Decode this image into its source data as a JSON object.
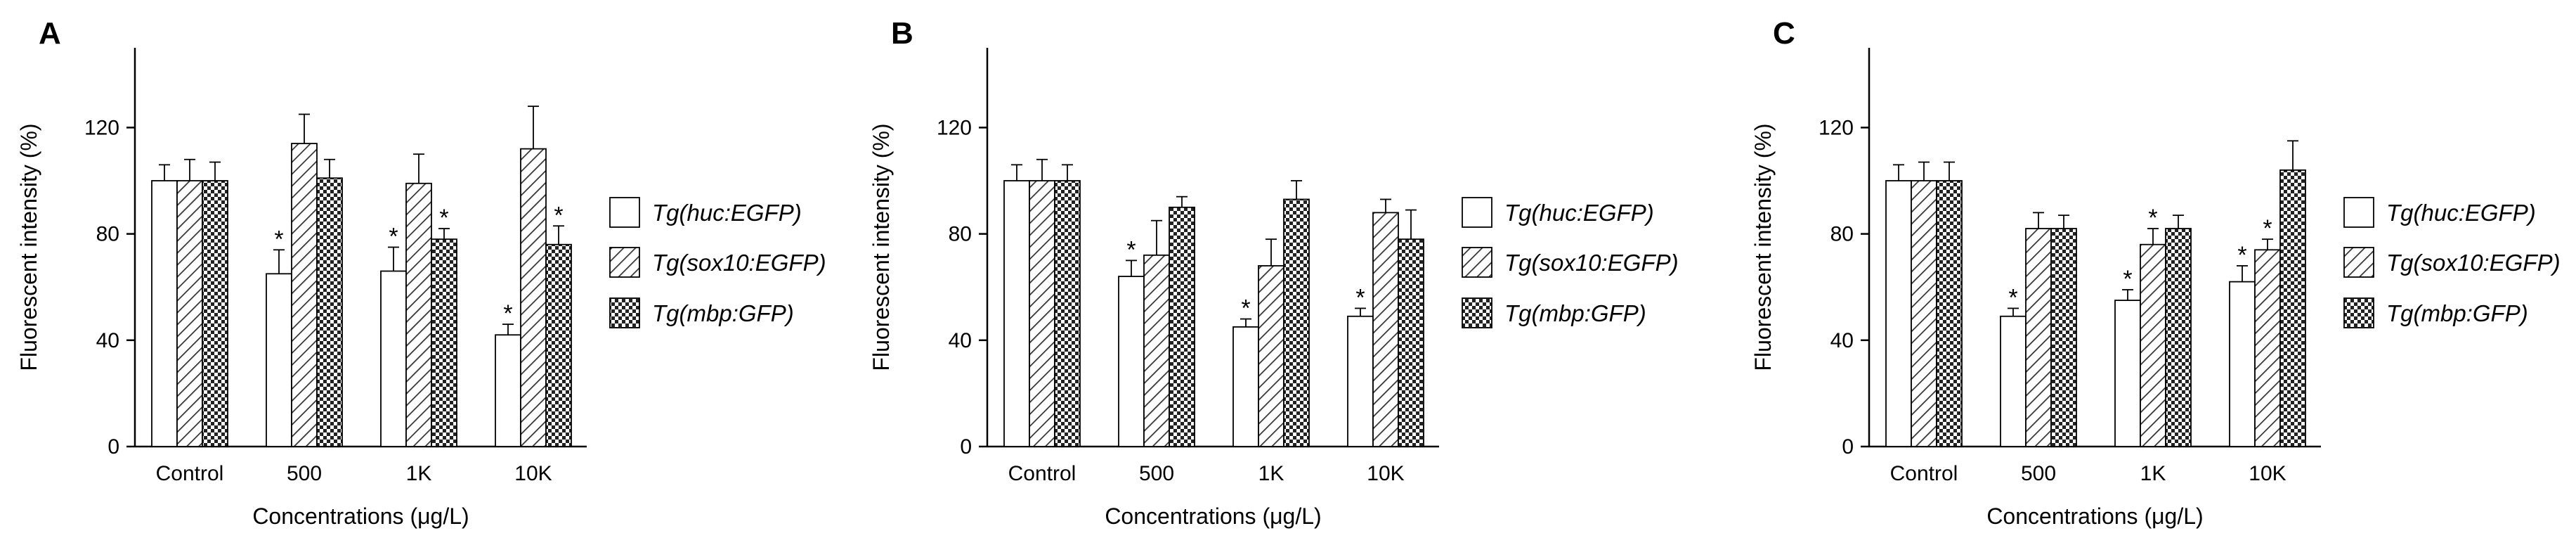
{
  "legend_labels": [
    "Tg(huc:EGFP)",
    "Tg(sox10:EGFP)",
    "Tg(mbp:GFP)"
  ],
  "chart_data": [
    {
      "type": "bar",
      "panel": "A",
      "xlabel": "Concentrations (μg/L)",
      "ylabel": "Fluorescent intensity (%)",
      "ylim": [
        0,
        150
      ],
      "yticks": [
        0,
        40,
        80,
        120
      ],
      "categories": [
        "Control",
        "500",
        "1K",
        "10K"
      ],
      "series": [
        {
          "name": "Tg(huc:EGFP)",
          "values": [
            100,
            65,
            66,
            42
          ],
          "errors": [
            6,
            9,
            9,
            4
          ],
          "significant": [
            false,
            true,
            true,
            true
          ]
        },
        {
          "name": "Tg(sox10:EGFP)",
          "values": [
            100,
            114,
            99,
            112
          ],
          "errors": [
            8,
            11,
            11,
            16
          ],
          "significant": [
            false,
            false,
            false,
            false
          ]
        },
        {
          "name": "Tg(mbp:GFP)",
          "values": [
            100,
            101,
            78,
            76
          ],
          "errors": [
            7,
            7,
            4,
            7
          ],
          "significant": [
            false,
            false,
            true,
            true
          ]
        }
      ],
      "legend_position": "right"
    },
    {
      "type": "bar",
      "panel": "B",
      "xlabel": "Concentrations (μg/L)",
      "ylabel": "Fluorescent intensity (%)",
      "ylim": [
        0,
        150
      ],
      "yticks": [
        0,
        40,
        80,
        120
      ],
      "categories": [
        "Control",
        "500",
        "1K",
        "10K"
      ],
      "series": [
        {
          "name": "Tg(huc:EGFP)",
          "values": [
            100,
            64,
            45,
            49
          ],
          "errors": [
            6,
            6,
            3,
            3
          ],
          "significant": [
            false,
            true,
            true,
            true
          ]
        },
        {
          "name": "Tg(sox10:EGFP)",
          "values": [
            100,
            72,
            68,
            88
          ],
          "errors": [
            8,
            13,
            10,
            5
          ],
          "significant": [
            false,
            false,
            false,
            false
          ]
        },
        {
          "name": "Tg(mbp:GFP)",
          "values": [
            100,
            90,
            93,
            78
          ],
          "errors": [
            6,
            4,
            7,
            11
          ],
          "significant": [
            false,
            false,
            false,
            false
          ]
        }
      ],
      "legend_position": "right"
    },
    {
      "type": "bar",
      "panel": "C",
      "xlabel": "Concentrations (μg/L)",
      "ylabel": "Fluorescent intensity (%)",
      "ylim": [
        0,
        150
      ],
      "yticks": [
        0,
        40,
        80,
        120
      ],
      "categories": [
        "Control",
        "500",
        "1K",
        "10K"
      ],
      "series": [
        {
          "name": "Tg(huc:EGFP)",
          "values": [
            100,
            49,
            55,
            62
          ],
          "errors": [
            6,
            3,
            4,
            6
          ],
          "significant": [
            false,
            true,
            true,
            true
          ]
        },
        {
          "name": "Tg(sox10:EGFP)",
          "values": [
            100,
            82,
            76,
            74
          ],
          "errors": [
            7,
            6,
            6,
            4
          ],
          "significant": [
            false,
            false,
            true,
            true
          ]
        },
        {
          "name": "Tg(mbp:GFP)",
          "values": [
            100,
            82,
            82,
            104
          ],
          "errors": [
            7,
            5,
            5,
            11
          ],
          "significant": [
            false,
            false,
            false,
            false
          ]
        }
      ],
      "legend_position": "right"
    }
  ]
}
